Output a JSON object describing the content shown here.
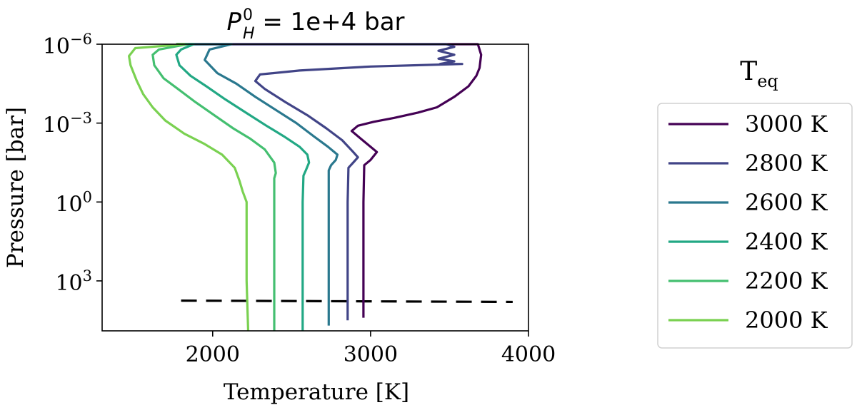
{
  "chart_data": {
    "type": "line",
    "title": "P_H^0 = 1e+4 bar",
    "title_parts": {
      "symbol": "P",
      "sup": "0",
      "sub": "H",
      "rest": " = 1e+4 bar"
    },
    "xlabel": "Temperature [K]",
    "ylabel": "Pressure [bar]",
    "xlim": [
      1300,
      4000
    ],
    "xticks": [
      2000,
      3000,
      4000
    ],
    "xtick_labels": [
      "2000",
      "3000",
      "4000"
    ],
    "yscale": "log",
    "ylim_log10": [
      -6,
      4.9
    ],
    "y_inverted": true,
    "yticks_log10": [
      -6,
      -3,
      0,
      3
    ],
    "ytick_labels": [
      {
        "base": "10",
        "exp": "−6"
      },
      {
        "base": "10",
        "exp": "−3"
      },
      {
        "base": "10",
        "exp": "0"
      },
      {
        "base": "10",
        "exp": "3"
      }
    ],
    "grid": false,
    "legend": {
      "title": "T",
      "title_sub": "eq",
      "placement": "outside-right"
    },
    "reference_line": {
      "style": "dashed",
      "color": "#000000",
      "points": [
        {
          "x": 1800,
          "y_log10": 3.75
        },
        {
          "x": 3900,
          "y_log10": 3.8
        }
      ]
    },
    "series": [
      {
        "name": "3000 K",
        "color": "#440154",
        "points": [
          [
            1770,
            -6
          ],
          [
            3680,
            -6
          ],
          [
            3700,
            -5.6
          ],
          [
            3690,
            -5.1
          ],
          [
            3670,
            -4.8
          ],
          [
            3620,
            -4.4
          ],
          [
            3530,
            -4.0
          ],
          [
            3420,
            -3.6
          ],
          [
            3300,
            -3.4
          ],
          [
            3150,
            -3.2
          ],
          [
            3020,
            -3.05
          ],
          [
            2920,
            -2.9
          ],
          [
            2880,
            -2.7
          ],
          [
            2960,
            -2.3
          ],
          [
            3040,
            -1.9
          ],
          [
            3000,
            -1.6
          ],
          [
            2960,
            -1.4
          ],
          [
            2955,
            0
          ],
          [
            2955,
            2.0
          ],
          [
            2955,
            3.0
          ],
          [
            2955,
            4.4
          ]
        ]
      },
      {
        "name": "2800 K",
        "color": "#414487",
        "points": [
          [
            1770,
            -6
          ],
          [
            3480,
            -6
          ],
          [
            3530,
            -5.9
          ],
          [
            3430,
            -5.75
          ],
          [
            3530,
            -5.6
          ],
          [
            3430,
            -5.45
          ],
          [
            3530,
            -5.35
          ],
          [
            3440,
            -5.25
          ],
          [
            3580,
            -5.25
          ],
          [
            3000,
            -5.15
          ],
          [
            2550,
            -5.0
          ],
          [
            2300,
            -4.85
          ],
          [
            2270,
            -4.6
          ],
          [
            2330,
            -4.3
          ],
          [
            2460,
            -3.8
          ],
          [
            2600,
            -3.3
          ],
          [
            2720,
            -2.8
          ],
          [
            2820,
            -2.35
          ],
          [
            2890,
            -1.9
          ],
          [
            2920,
            -1.7
          ],
          [
            2890,
            -1.5
          ],
          [
            2860,
            -1.3
          ],
          [
            2855,
            0
          ],
          [
            2855,
            2.0
          ],
          [
            2855,
            3.0
          ],
          [
            2855,
            4.5
          ]
        ]
      },
      {
        "name": "2600 K",
        "color": "#2a788e",
        "points": [
          [
            1770,
            -6
          ],
          [
            2120,
            -6
          ],
          [
            1980,
            -5.8
          ],
          [
            1950,
            -5.4
          ],
          [
            2030,
            -4.9
          ],
          [
            2150,
            -4.5
          ],
          [
            2270,
            -4.0
          ],
          [
            2400,
            -3.5
          ],
          [
            2530,
            -3.0
          ],
          [
            2640,
            -2.5
          ],
          [
            2730,
            -2.1
          ],
          [
            2790,
            -1.8
          ],
          [
            2780,
            -1.6
          ],
          [
            2750,
            -1.4
          ],
          [
            2735,
            -1.2
          ],
          [
            2735,
            0
          ],
          [
            2735,
            2.0
          ],
          [
            2735,
            3.0
          ],
          [
            2735,
            4.7
          ]
        ]
      },
      {
        "name": "2400 K",
        "color": "#22a884",
        "points": [
          [
            1770,
            -6
          ],
          [
            1880,
            -6
          ],
          [
            1800,
            -5.8
          ],
          [
            1770,
            -5.6
          ],
          [
            1790,
            -5.2
          ],
          [
            1860,
            -4.8
          ],
          [
            1960,
            -4.4
          ],
          [
            2080,
            -3.9
          ],
          [
            2210,
            -3.4
          ],
          [
            2340,
            -2.9
          ],
          [
            2450,
            -2.5
          ],
          [
            2550,
            -2.1
          ],
          [
            2600,
            -1.8
          ],
          [
            2610,
            -1.5
          ],
          [
            2590,
            -1.2
          ],
          [
            2575,
            -1.0
          ],
          [
            2570,
            0
          ],
          [
            2570,
            2.0
          ],
          [
            2570,
            3.0
          ],
          [
            2570,
            4.9
          ]
        ]
      },
      {
        "name": "2200 K",
        "color": "#44bf70",
        "points": [
          [
            1770,
            -6
          ],
          [
            1840,
            -6
          ],
          [
            1660,
            -5.8
          ],
          [
            1620,
            -5.6
          ],
          [
            1630,
            -5.2
          ],
          [
            1690,
            -4.7
          ],
          [
            1780,
            -4.3
          ],
          [
            1890,
            -3.8
          ],
          [
            2010,
            -3.3
          ],
          [
            2130,
            -2.8
          ],
          [
            2240,
            -2.4
          ],
          [
            2330,
            -2.0
          ],
          [
            2390,
            -1.5
          ],
          [
            2400,
            -1.1
          ],
          [
            2390,
            -0.9
          ],
          [
            2390,
            0
          ],
          [
            2390,
            2.0
          ],
          [
            2390,
            3.0
          ],
          [
            2390,
            4.9
          ]
        ]
      },
      {
        "name": "2000 K",
        "color": "#7ad151",
        "points": [
          [
            1770,
            -6
          ],
          [
            1820,
            -6
          ],
          [
            1510,
            -5.85
          ],
          [
            1470,
            -5.55
          ],
          [
            1480,
            -5.2
          ],
          [
            1520,
            -4.6
          ],
          [
            1560,
            -4.1
          ],
          [
            1620,
            -3.6
          ],
          [
            1700,
            -3.1
          ],
          [
            1820,
            -2.6
          ],
          [
            1950,
            -2.2
          ],
          [
            2060,
            -1.8
          ],
          [
            2140,
            -1.3
          ],
          [
            2170,
            -0.8
          ],
          [
            2190,
            -0.4
          ],
          [
            2215,
            0
          ],
          [
            2215,
            2.0
          ],
          [
            2215,
            3.0
          ],
          [
            2225,
            4.9
          ]
        ]
      }
    ]
  }
}
